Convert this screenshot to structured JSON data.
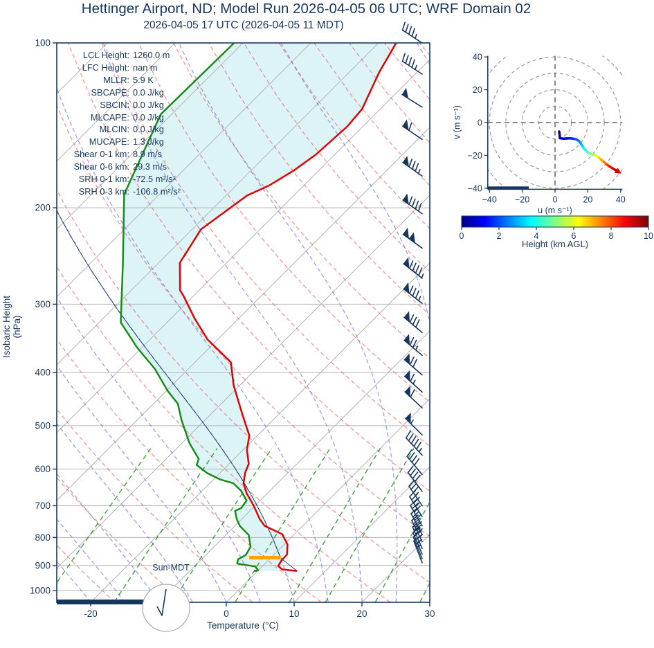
{
  "header": {
    "title": "Hettinger Airport, ND; Model Run 2026-04-05 06 UTC; WRF Domain 02",
    "subtitle": "2026-04-05 17 UTC  (2026-04-05 11 MDT)"
  },
  "stats": {
    "rows": [
      {
        "label": "LCL Height:",
        "value": "1260.0 m"
      },
      {
        "label": "LFC Height:",
        "value": "nan m"
      },
      {
        "label": "MLLR:",
        "value": "5.9 K"
      },
      {
        "label": "SBCAPE:",
        "value": "0.0 J/kg"
      },
      {
        "label": "SBCIN:",
        "value": "0.0 J/kg"
      },
      {
        "label": "MLCAPE:",
        "value": "0.0 J/kg"
      },
      {
        "label": "MLCIN:",
        "value": "0.0 J/kg"
      },
      {
        "label": "MUCAPE:",
        "value": "1.3 J/kg"
      },
      {
        "label": "Shear 0-1 km:",
        "value": "8.9 m/s"
      },
      {
        "label": "Shear 0-6 km:",
        "value": "29.3 m/s"
      },
      {
        "label": "SRH 0-1 km:",
        "value": "-72.5 m²/s²"
      },
      {
        "label": "SRH 0-3 km:",
        "value": "-106.8 m²/s²"
      }
    ]
  },
  "skewt": {
    "ylabel": "Isobaric Height (hPa)",
    "xlabel": "Temperature (°C)",
    "sun_label": "Sun-MDT"
  },
  "hodograph": {
    "xlabel": "u (m s⁻¹)",
    "ylabel": "v (m s⁻¹)",
    "colorbar": {
      "label": "Height (km AGL)"
    }
  },
  "colors": {
    "navy": "#16365c",
    "temperature": "#e50000",
    "dewpoint": "#1a8a1a",
    "fill_cyan": "#dcf4f6",
    "dry_adiabat": "rgba(235,70,70,0.55)",
    "moist_adiabat": "rgba(95,95,230,0.6)",
    "mixing_line": "rgba(35,140,35,0.8)",
    "grid_gray": "#b5b5b5",
    "lcl_orange": "#ffa500"
  },
  "chart_data": {
    "type": "skewt-log-p with hodograph",
    "skewt": {
      "pressure_ticks_hpa": [
        100,
        200,
        300,
        400,
        500,
        600,
        700,
        800,
        900,
        1000
      ],
      "temp_ticks_c": [
        -20,
        -10,
        0,
        10,
        20,
        30
      ],
      "xlim_c": [
        -25,
        30
      ],
      "plim_hpa": [
        100,
        1050
      ],
      "temperature_profile": {
        "pressure_hpa": [
          100,
          113,
          132,
          142,
          160,
          171,
          182,
          190,
          219,
          252,
          283,
          289,
          318,
          348,
          383,
          422,
          475,
          521,
          554,
          587,
          610,
          637,
          664,
          700,
          741,
          762,
          789,
          824,
          859,
          884,
          902,
          915,
          921
        ],
        "temp_c": [
          -57.4,
          -55.6,
          -52.7,
          -52.3,
          -52.8,
          -53.7,
          -55.1,
          -56.9,
          -58.7,
          -56.9,
          -52.8,
          -51.6,
          -46.6,
          -41.5,
          -34.7,
          -30.9,
          -25.5,
          -21.2,
          -19.4,
          -17.1,
          -16.3,
          -15.0,
          -13.1,
          -10.2,
          -7.3,
          -5.6,
          -1.8,
          0.5,
          1.9,
          2.0,
          2.3,
          3.4,
          5.8
        ]
      },
      "dewpoint_profile": {
        "pressure_hpa": [
          100,
          135,
          189,
          252,
          324,
          360,
          394,
          432,
          456,
          488,
          538,
          575,
          590,
          610,
          627,
          637,
          657,
          685,
          707,
          715,
          741,
          763,
          792,
          832,
          861,
          877,
          893,
          904,
          919,
          921
        ],
        "temp_c": [
          -81.3,
          -81.6,
          -75.2,
          -65.3,
          -56.8,
          -50.7,
          -44.9,
          -39.8,
          -36.4,
          -33.5,
          -28.9,
          -25.2,
          -24.6,
          -21.9,
          -19.0,
          -16.5,
          -14.3,
          -12.0,
          -11.7,
          -12.2,
          -10.7,
          -9.2,
          -6.6,
          -4.6,
          -4.1,
          -4.6,
          -4.1,
          -1.0,
          0.0,
          -0.5
        ]
      },
      "parcel": {
        "surface_temp_c": 5.8,
        "surface_pressure_hpa": 921,
        "lcl_pressure_hpa": 871
      },
      "lcl_marker": {
        "pressure_hpa": 871,
        "temp_range_c": [
          -3.2,
          1.5
        ]
      },
      "wind_barbs": [
        {
          "p": 100,
          "pen": 0,
          "full": 4,
          "half": 1,
          "ang": 33
        },
        {
          "p": 114,
          "pen": 0,
          "full": 4,
          "half": 1,
          "ang": 33
        },
        {
          "p": 131,
          "pen": 1,
          "full": 0,
          "half": 0,
          "ang": 32
        },
        {
          "p": 150,
          "pen": 1,
          "full": 1,
          "half": 0,
          "ang": 34
        },
        {
          "p": 175,
          "pen": 1,
          "full": 3,
          "half": 1,
          "ang": 35
        },
        {
          "p": 205,
          "pen": 1,
          "full": 4,
          "half": 0,
          "ang": 35
        },
        {
          "p": 237,
          "pen": 2,
          "full": 0,
          "half": 0,
          "ang": 36
        },
        {
          "p": 269,
          "pen": 1,
          "full": 4,
          "half": 1,
          "ang": 38
        },
        {
          "p": 299,
          "pen": 1,
          "full": 3,
          "half": 1,
          "ang": 38
        },
        {
          "p": 338,
          "pen": 1,
          "full": 3,
          "half": 0,
          "ang": 40
        },
        {
          "p": 372,
          "pen": 1,
          "full": 2,
          "half": 1,
          "ang": 40
        },
        {
          "p": 404,
          "pen": 1,
          "full": 2,
          "half": 0,
          "ang": 41
        },
        {
          "p": 434,
          "pen": 1,
          "full": 1,
          "half": 1,
          "ang": 42
        },
        {
          "p": 464,
          "pen": 1,
          "full": 1,
          "half": 0,
          "ang": 43
        },
        {
          "p": 520,
          "pen": 1,
          "full": 0,
          "half": 1,
          "ang": 45
        },
        {
          "p": 566,
          "pen": 0,
          "full": 5,
          "half": 1,
          "ang": 47
        },
        {
          "p": 614,
          "pen": 0,
          "full": 4,
          "half": 0,
          "ang": 50
        },
        {
          "p": 659,
          "pen": 0,
          "full": 4,
          "half": 0,
          "ang": 53
        },
        {
          "p": 700,
          "pen": 0,
          "full": 3,
          "half": 1,
          "ang": 56
        },
        {
          "p": 733,
          "pen": 0,
          "full": 3,
          "half": 1,
          "ang": 58
        },
        {
          "p": 762,
          "pen": 0,
          "full": 3,
          "half": 0,
          "ang": 60
        },
        {
          "p": 790,
          "pen": 0,
          "full": 3,
          "half": 0,
          "ang": 62
        },
        {
          "p": 814,
          "pen": 0,
          "full": 3,
          "half": 1,
          "ang": 64
        },
        {
          "p": 838,
          "pen": 0,
          "full": 3,
          "half": 0,
          "ang": 66
        },
        {
          "p": 858,
          "pen": 0,
          "full": 3,
          "half": 0,
          "ang": 67
        },
        {
          "p": 875,
          "pen": 0,
          "full": 2,
          "half": 1,
          "ang": 68
        },
        {
          "p": 890,
          "pen": 0,
          "full": 2,
          "half": 1,
          "ang": 69
        }
      ],
      "background": {
        "isotherms_c": {
          "from": -120,
          "to": 30,
          "step": 10
        },
        "dry_adiabats_c": {
          "from": -30,
          "to": 170,
          "step": 10
        },
        "moist_adiabats_c": {
          "from": -40,
          "to": 40,
          "step": 5
        },
        "mixing_ratios_g_kg": [
          0.4,
          1,
          2,
          4,
          7,
          10,
          16,
          24,
          32,
          40
        ],
        "night_bar_x_range_c": [
          -25,
          -8.5
        ]
      }
    },
    "hodograph": {
      "xlim": [
        -41,
        41
      ],
      "u_ticks": [
        -40,
        -20,
        0,
        20,
        40
      ],
      "v_ticks": [
        -40,
        -20,
        0,
        20,
        40
      ],
      "rings_ms": [
        10,
        20,
        30,
        40,
        50
      ],
      "bar": {
        "v": -40,
        "u_from": -41,
        "u_to": -16
      },
      "trace": [
        {
          "u": 2.5,
          "v": -5.5,
          "h": 0
        },
        {
          "u": 2.8,
          "v": -7.5,
          "h": 0.2
        },
        {
          "u": 3.0,
          "v": -9.5,
          "h": 0.5
        },
        {
          "u": 5.0,
          "v": -9.8,
          "h": 0.8
        },
        {
          "u": 7.0,
          "v": -9.7,
          "h": 1.1
        },
        {
          "u": 9.0,
          "v": -9.6,
          "h": 1.4
        },
        {
          "u": 11.0,
          "v": -9.8,
          "h": 1.7
        },
        {
          "u": 13.0,
          "v": -10.2,
          "h": 2.0
        },
        {
          "u": 14.5,
          "v": -11.2,
          "h": 2.4
        },
        {
          "u": 15.5,
          "v": -12.5,
          "h": 2.7
        },
        {
          "u": 16.3,
          "v": -13.8,
          "h": 3.0
        },
        {
          "u": 17.2,
          "v": -15.2,
          "h": 3.4
        },
        {
          "u": 18.3,
          "v": -16.6,
          "h": 3.8
        },
        {
          "u": 19.5,
          "v": -17.8,
          "h": 4.2
        },
        {
          "u": 21.0,
          "v": -18.9,
          "h": 4.6
        },
        {
          "u": 22.5,
          "v": -19.4,
          "h": 5.0
        },
        {
          "u": 24.0,
          "v": -19.7,
          "h": 5.4
        },
        {
          "u": 25.5,
          "v": -20.4,
          "h": 5.9
        },
        {
          "u": 26.8,
          "v": -21.4,
          "h": 6.4
        },
        {
          "u": 28.2,
          "v": -22.7,
          "h": 6.9
        },
        {
          "u": 29.8,
          "v": -24.1,
          "h": 7.4
        },
        {
          "u": 31.5,
          "v": -25.5,
          "h": 7.9
        },
        {
          "u": 33.3,
          "v": -26.8,
          "h": 8.4
        },
        {
          "u": 35.2,
          "v": -28.0,
          "h": 8.9
        },
        {
          "u": 37.0,
          "v": -29.0,
          "h": 9.4
        },
        {
          "u": 38.3,
          "v": -29.8,
          "h": 10
        }
      ]
    },
    "colorbar": {
      "min": 0,
      "max": 10,
      "ticks": [
        0,
        2,
        4,
        6,
        8,
        10
      ]
    }
  }
}
